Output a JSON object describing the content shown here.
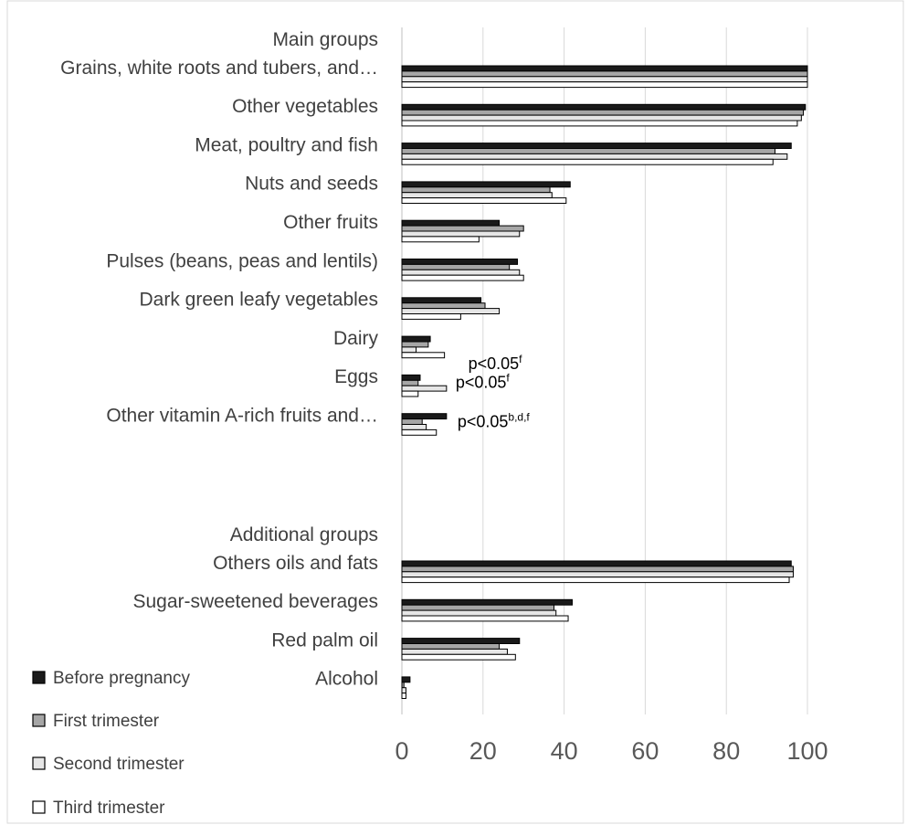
{
  "chart_data": {
    "type": "bar",
    "orientation": "horizontal",
    "xlim": [
      0,
      100
    ],
    "xticks": [
      "0",
      "20",
      "40",
      "60",
      "80",
      "100"
    ],
    "grid": true,
    "legend_position": "bottom-left",
    "series": [
      {
        "name": "Before pregnancy",
        "color": "#1a1a1a"
      },
      {
        "name": "First trimester",
        "color": "#a6a6a6"
      },
      {
        "name": "Second trimester",
        "color": "#e6e6e6"
      },
      {
        "name": "Third trimester",
        "color": "#ffffff"
      }
    ],
    "groups": [
      {
        "heading": "Main groups",
        "categories": [
          {
            "label": "Grains, white roots and tubers, and…",
            "values": [
              100,
              100,
              100,
              100
            ],
            "annotation": ""
          },
          {
            "label": "Other vegetables",
            "values": [
              99.5,
              99,
              98.5,
              97.5
            ],
            "annotation": ""
          },
          {
            "label": "Meat, poultry and fish",
            "values": [
              96,
              92,
              95,
              91.5
            ],
            "annotation": ""
          },
          {
            "label": "Nuts and seeds",
            "values": [
              41.5,
              36.5,
              37,
              40.5
            ],
            "annotation": ""
          },
          {
            "label": "Other fruits",
            "values": [
              24,
              30,
              29,
              19
            ],
            "annotation": ""
          },
          {
            "label": "Pulses (beans, peas and lentils)",
            "values": [
              28.5,
              26.5,
              29,
              30
            ],
            "annotation": ""
          },
          {
            "label": "Dark green leafy vegetables",
            "values": [
              19.5,
              20.5,
              24,
              14.5
            ],
            "annotation": ""
          },
          {
            "label": "Dairy",
            "values": [
              7,
              6.5,
              3.5,
              10.5
            ],
            "annotation": "p<0.05",
            "annotation_sup": "f"
          },
          {
            "label": "Eggs",
            "values": [
              4.5,
              4,
              11,
              4
            ],
            "annotation": "p<0.05",
            "annotation_sup": "f"
          },
          {
            "label": "Other vitamin A-rich fruits and…",
            "values": [
              11,
              5,
              6,
              8.5
            ],
            "annotation": "p<0.05",
            "annotation_sup": "b,d,f"
          }
        ]
      },
      {
        "heading": "Additional groups",
        "categories": [
          {
            "label": "Others oils and fats",
            "values": [
              96,
              96.5,
              96.5,
              95.5
            ],
            "annotation": ""
          },
          {
            "label": "Sugar-sweetened beverages",
            "values": [
              42,
              37.5,
              38,
              41
            ],
            "annotation": ""
          },
          {
            "label": "Red palm oil",
            "values": [
              29,
              24,
              26,
              28
            ],
            "annotation": ""
          },
          {
            "label": "Alcohol",
            "values": [
              2,
              0.5,
              1,
              1
            ],
            "annotation": ""
          }
        ]
      }
    ]
  }
}
